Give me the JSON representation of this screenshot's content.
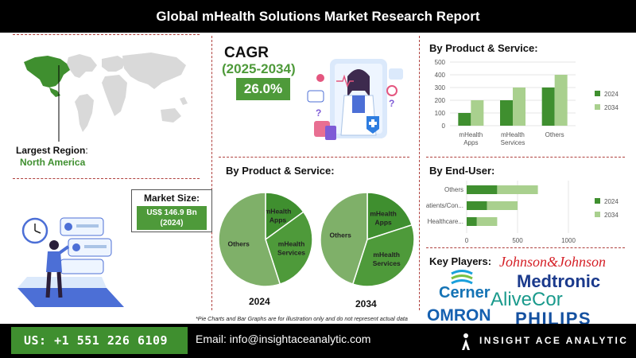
{
  "title": "Global mHealth Solutions Market Research Report",
  "region": {
    "label": "Largest Region",
    "colon": ":",
    "value": "North America"
  },
  "cagr": {
    "label": "CAGR",
    "period": "(2025-2034)",
    "value": "26.0%"
  },
  "market_size": {
    "label": "Market Size:",
    "value_line1": "US$ 146.9 Bn",
    "value_line2": "(2024)"
  },
  "pie_section": {
    "title": "By Product & Service:"
  },
  "disclaimer": "*Pie Charts and Bar Graphs are for illustration only and do not represent actual data",
  "key_players": {
    "label": "Key Players:",
    "logos": [
      "Johnson&Johnson",
      "Medtronic",
      "Cerner",
      "AliveCor",
      "OMRON",
      "PHILIPS"
    ]
  },
  "footer": {
    "phone": "US: +1 551 226 6109",
    "email": "Email: info@insightaceanalytic.com",
    "brand": "INSIGHT ACE ANALYTIC"
  },
  "colors": {
    "dark_green": "#3f8f2f",
    "light_green": "#a9d08e",
    "accent_red": "#b0413e"
  },
  "icons": [
    "world-map",
    "doctor-illustration",
    "person-dashboard-illustration",
    "insightace-logo-icon"
  ],
  "chart_data": [
    {
      "type": "bar",
      "title": "By Product & Service:",
      "categories": [
        "mHealth Apps",
        "mHealth Services",
        "Others"
      ],
      "series": [
        {
          "name": "2024",
          "values": [
            100,
            200,
            300
          ],
          "color": "#3f8f2f"
        },
        {
          "name": "2034",
          "values": [
            200,
            300,
            400
          ],
          "color": "#a9d08e"
        }
      ],
      "y_ticks": [
        "0",
        "100",
        "200",
        "300",
        "400",
        "500"
      ],
      "ylim": [
        0,
        500
      ],
      "legend": "right"
    },
    {
      "type": "bar",
      "orientation": "horizontal",
      "stacked": true,
      "title": "By End-User:",
      "categories": [
        "Others",
        "Patients/Con...",
        "Healthcare..."
      ],
      "series": [
        {
          "name": "2024",
          "values": [
            300,
            200,
            100
          ],
          "color": "#3f8f2f"
        },
        {
          "name": "2034",
          "values": [
            400,
            300,
            200
          ],
          "color": "#a9d08e"
        }
      ],
      "x_ticks": [
        "0",
        "500",
        "1000"
      ],
      "xlim": [
        0,
        1000
      ],
      "legend": "right"
    },
    {
      "type": "pie",
      "label": "2024",
      "slices": [
        {
          "name": "mHealth Apps",
          "value": 15,
          "color": "#3f8f2f"
        },
        {
          "name": "mHealth Services",
          "value": 30,
          "color": "#4e9a3a"
        },
        {
          "name": "Others",
          "value": 55,
          "color": "#7fb069"
        }
      ]
    },
    {
      "type": "pie",
      "label": "2034",
      "slices": [
        {
          "name": "mHealth Apps",
          "value": 20,
          "color": "#3f8f2f"
        },
        {
          "name": "mHealth Services",
          "value": 35,
          "color": "#4e9a3a"
        },
        {
          "name": "Others",
          "value": 45,
          "color": "#7fb069"
        }
      ]
    }
  ]
}
